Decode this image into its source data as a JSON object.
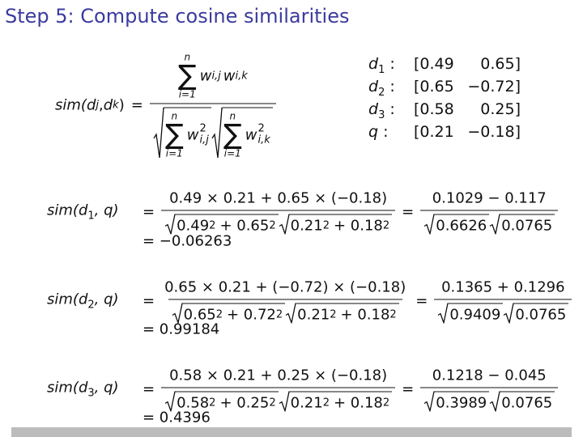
{
  "title": "Step 5: Compute cosine similarities",
  "definition": {
    "lhs": [
      "sim(",
      "d",
      "j",
      ", ",
      "d",
      "k",
      ")"
    ],
    "eq": "=",
    "numerator": {
      "sum": "∑",
      "upper": "n",
      "lower": "i=1",
      "terms": [
        [
          "w",
          "i,j"
        ],
        [
          "w",
          "i,k"
        ]
      ]
    },
    "denominator": [
      {
        "sum": "∑",
        "upper": "n",
        "lower": "i=1",
        "w": "w",
        "sup": "2",
        "sub": "i,j"
      },
      {
        "sum": "∑",
        "upper": "n",
        "lower": "i=1",
        "w": "w",
        "sup": "2",
        "sub": "i,k"
      }
    ]
  },
  "vectors": [
    {
      "label": [
        "d",
        "1",
        " :"
      ],
      "values": [
        "[0.49",
        "0.65]"
      ]
    },
    {
      "label": [
        "d",
        "2",
        " :"
      ],
      "values": [
        "[0.65",
        "−0.72]"
      ]
    },
    {
      "label": [
        "d",
        "3",
        " :"
      ],
      "values": [
        "[0.58",
        "0.25]"
      ]
    },
    {
      "label": [
        "q",
        " :"
      ],
      "values": [
        "[0.21",
        "−0.18]"
      ]
    }
  ],
  "computations": [
    {
      "lhs": [
        "sim(",
        "d",
        "1",
        ", q)"
      ],
      "eq": "=",
      "numerator": "0.49 × 0.21 + 0.65 × (−0.18)",
      "radicand_a": [
        "0.49",
        "2",
        "+ 0.65",
        "2"
      ],
      "radicand_b": [
        "0.21",
        "2",
        "+ 0.18",
        "2"
      ],
      "eq2": "=",
      "numerator2": "0.1029 − 0.117",
      "root_a": "0.6626",
      "root_b": "0.0765",
      "result": "= −0.06263"
    },
    {
      "lhs": [
        "sim(",
        "d",
        "2",
        ", q)"
      ],
      "eq": "=",
      "numerator": "0.65 × 0.21 + (−0.72) × (−0.18)",
      "radicand_a": [
        "0.65",
        "2",
        "+ 0.72",
        "2"
      ],
      "radicand_b": [
        "0.21",
        "2",
        "+ 0.18",
        "2"
      ],
      "eq2": "=",
      "numerator2": "0.1365 + 0.1296",
      "root_a": "0.9409",
      "root_b": "0.0765",
      "result": "= 0.99184"
    },
    {
      "lhs": [
        "sim(",
        "d",
        "3",
        ", q)"
      ],
      "eq": "=",
      "numerator": "0.58 × 0.21 + 0.25 × (−0.18)",
      "radicand_a": [
        "0.58",
        "2",
        "+ 0.25",
        "2"
      ],
      "radicand_b": [
        "0.21",
        "2",
        "+ 0.18",
        "2"
      ],
      "eq2": "=",
      "numerator2": "0.1218 − 0.045",
      "root_a": "0.3989",
      "root_b": "0.0765",
      "result": "= 0.4396"
    }
  ]
}
